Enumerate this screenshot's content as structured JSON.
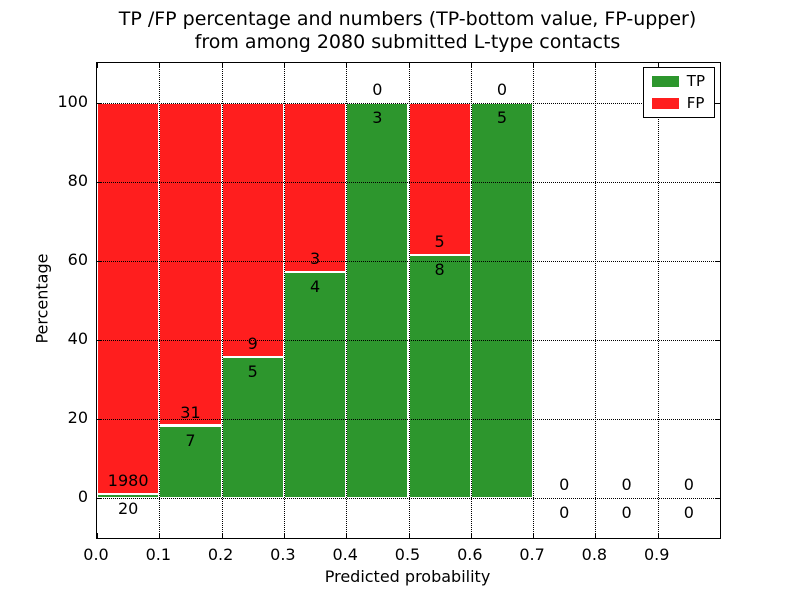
{
  "chart_data": {
    "type": "bar",
    "stacked": true,
    "title_line1": "TP /FP percentage and numbers (TP-bottom value, FP-upper)",
    "title_line2": "from among 2080 submitted L-type contacts",
    "xlabel": "Predicted probability",
    "ylabel": "Percentage",
    "xlim": [
      0.0,
      1.0
    ],
    "ylim": [
      -10,
      110
    ],
    "xtick_values": [
      0.0,
      0.1,
      0.2,
      0.3,
      0.4,
      0.5,
      0.6,
      0.7,
      0.8,
      0.9
    ],
    "xtick_labels": [
      "0.0",
      "0.1",
      "0.2",
      "0.3",
      "0.4",
      "0.5",
      "0.6",
      "0.7",
      "0.8",
      "0.9"
    ],
    "ytick_values": [
      0,
      20,
      40,
      60,
      80,
      100
    ],
    "ytick_labels": [
      "0",
      "20",
      "40",
      "60",
      "80",
      "100"
    ],
    "grid": "dotted",
    "colors": {
      "tp": "#2d962d",
      "fp": "#ff1e1e"
    },
    "legend": {
      "position": "upper right",
      "entries": [
        {
          "label": "TP",
          "color": "#2d962d"
        },
        {
          "label": "FP",
          "color": "#ff1e1e"
        }
      ]
    },
    "bins": [
      {
        "range": [
          0.0,
          0.1
        ],
        "tp": 20,
        "fp": 1980
      },
      {
        "range": [
          0.1,
          0.2
        ],
        "tp": 7,
        "fp": 31
      },
      {
        "range": [
          0.2,
          0.3
        ],
        "tp": 5,
        "fp": 9
      },
      {
        "range": [
          0.3,
          0.4
        ],
        "tp": 4,
        "fp": 3
      },
      {
        "range": [
          0.4,
          0.5
        ],
        "tp": 3,
        "fp": 0
      },
      {
        "range": [
          0.5,
          0.6
        ],
        "tp": 8,
        "fp": 5
      },
      {
        "range": [
          0.6,
          0.7
        ],
        "tp": 5,
        "fp": 0
      },
      {
        "range": [
          0.7,
          0.8
        ],
        "tp": 0,
        "fp": 0
      },
      {
        "range": [
          0.8,
          0.9
        ],
        "tp": 0,
        "fp": 0
      },
      {
        "range": [
          0.9,
          1.0
        ],
        "tp": 0,
        "fp": 0
      }
    ]
  }
}
